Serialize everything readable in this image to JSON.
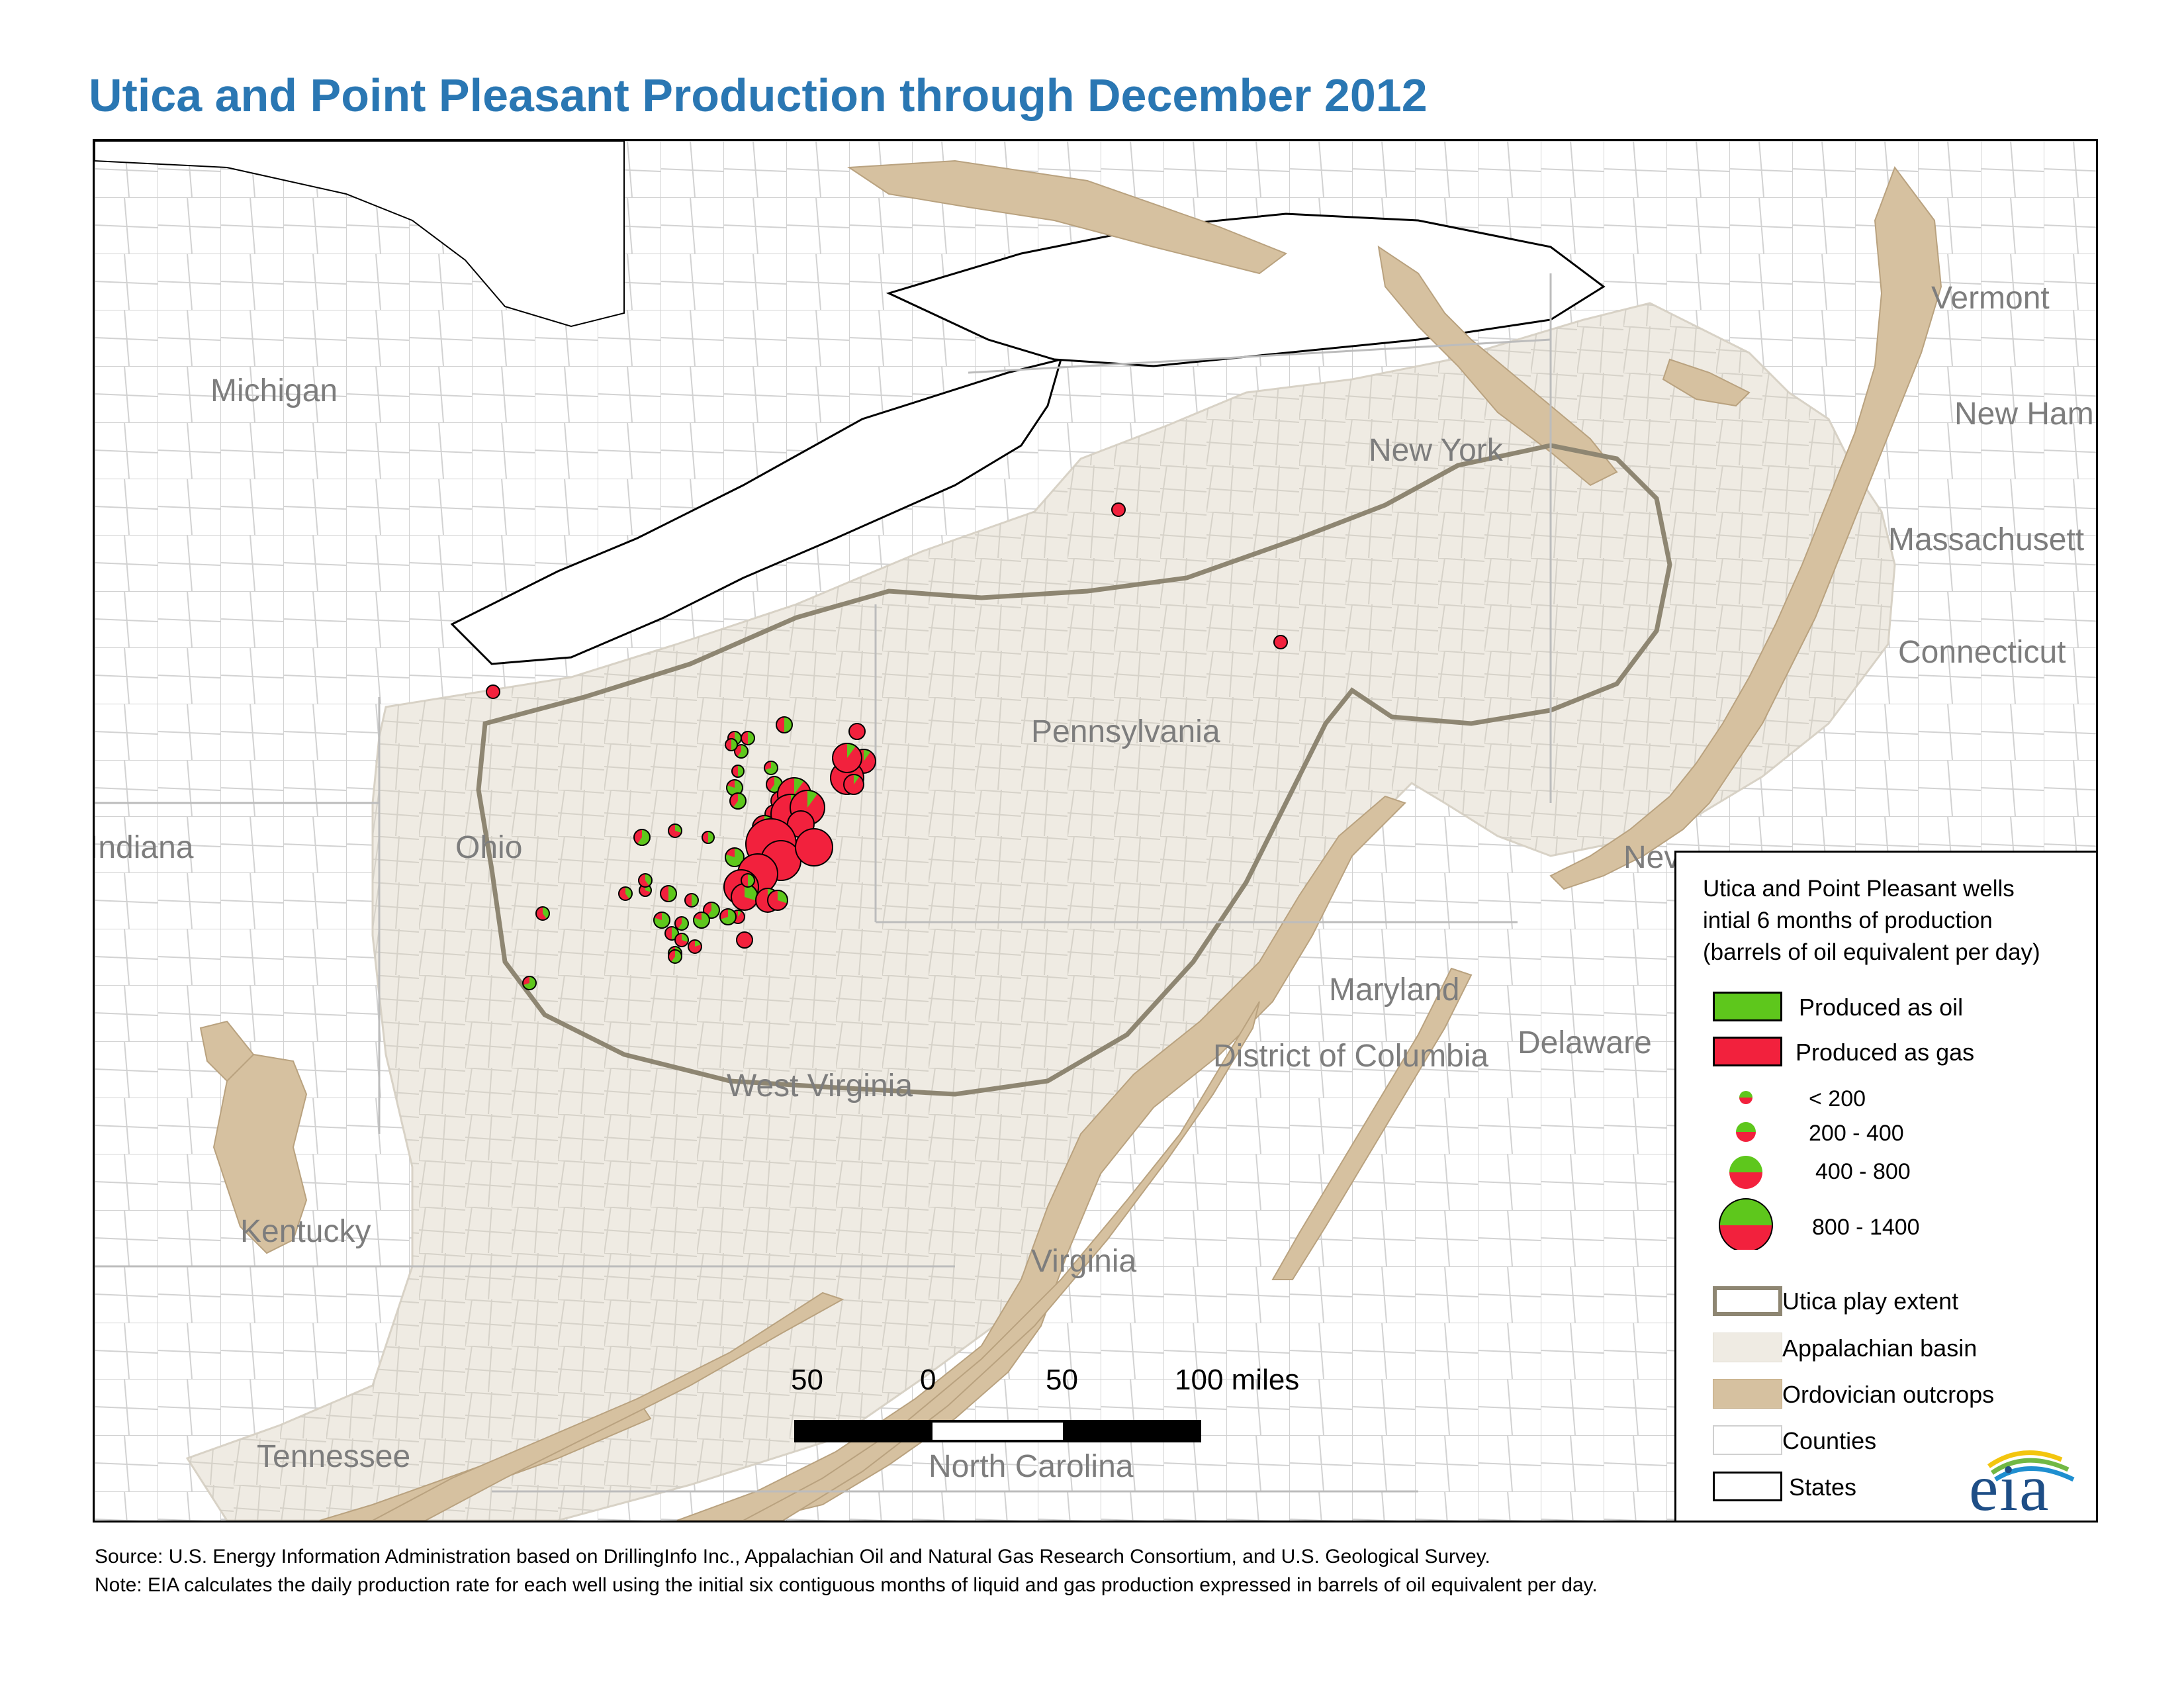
{
  "title": "Utica and Point Pleasant Production through December 2012",
  "state_labels": {
    "michigan": "Michigan",
    "indiana": "Indiana",
    "ohio": "Ohio",
    "kentucky": "Kentucky",
    "tennessee": "Tennessee",
    "west_virginia": "West Virginia",
    "virginia": "Virginia",
    "north_carolina": "North Carolina",
    "pennsylvania": "Pennsylvania",
    "new_york": "New York",
    "vermont": "Vermont",
    "new_hampshire": "New Ham",
    "massachusetts": "Massachusett",
    "connecticut": "Connecticut",
    "new_jersey": "Nev",
    "maryland": "Maryland",
    "district_of_columbia": "District of Columbia",
    "delaware": "Delaware"
  },
  "legend": {
    "title_line1": "Utica and Point Pleasant wells",
    "title_line2": "intial 6 months of production",
    "title_line3": "(barrels of oil equivalent per day)",
    "produced_oil": "Produced as oil",
    "produced_gas": "Produced as gas",
    "size_classes": [
      "< 200",
      "200 - 400",
      "400 - 800",
      "800 - 1400"
    ],
    "utica_extent": "Utica play extent",
    "appalachian_basin": "Appalachian basin",
    "ordovician_outcrops": "Ordovician outcrops",
    "counties": "Counties",
    "states": "States"
  },
  "colors": {
    "oil": "#5ec71c",
    "gas": "#f2213d",
    "basin": "#efebe3",
    "outcrop": "#d6c1a0",
    "extent": "#8e8672",
    "title": "#2a77b3"
  },
  "scale_bar": {
    "labels": [
      "50",
      "0",
      "50",
      "100 miles"
    ]
  },
  "logo_text": "eia",
  "footer": {
    "source": "Source: U.S. Energy Information Administration based on DrillingInfo Inc., Appalachian Oil and Natural Gas Research Consortium, and U.S. Geological Survey.",
    "note": "Note: EIA calculates the daily production rate for each well using the initial six contiguous months of liquid and gas production expressed in barrels of oil equivalent per day."
  }
}
